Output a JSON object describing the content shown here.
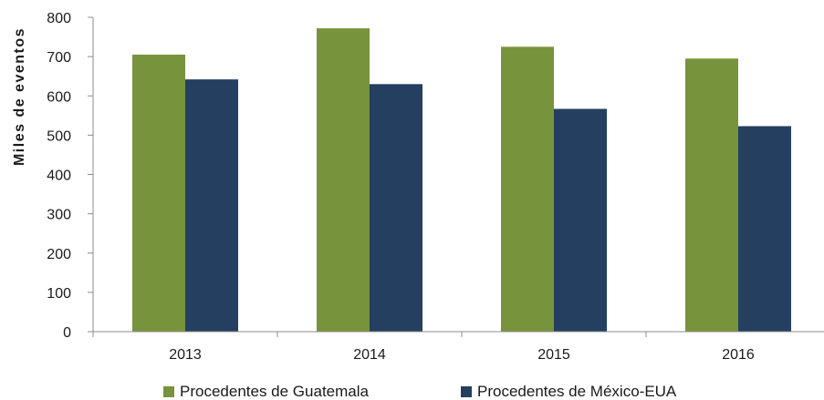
{
  "chart_data": {
    "type": "bar",
    "title": "",
    "xlabel": "",
    "ylabel": "Miles de eventos",
    "ylim": [
      0,
      800
    ],
    "yticks": [
      0,
      100,
      200,
      300,
      400,
      500,
      600,
      700,
      800
    ],
    "categories": [
      "2013",
      "2014",
      "2015",
      "2016"
    ],
    "series": [
      {
        "name": "Procedentes de Guatemala",
        "color": "#77933c",
        "values": [
          705,
          772,
          725,
          695
        ]
      },
      {
        "name": "Procedentes de México-EUA",
        "color": "#243f60",
        "values": [
          642,
          630,
          567,
          523
        ]
      }
    ],
    "grid": false,
    "legend_position": "bottom"
  }
}
